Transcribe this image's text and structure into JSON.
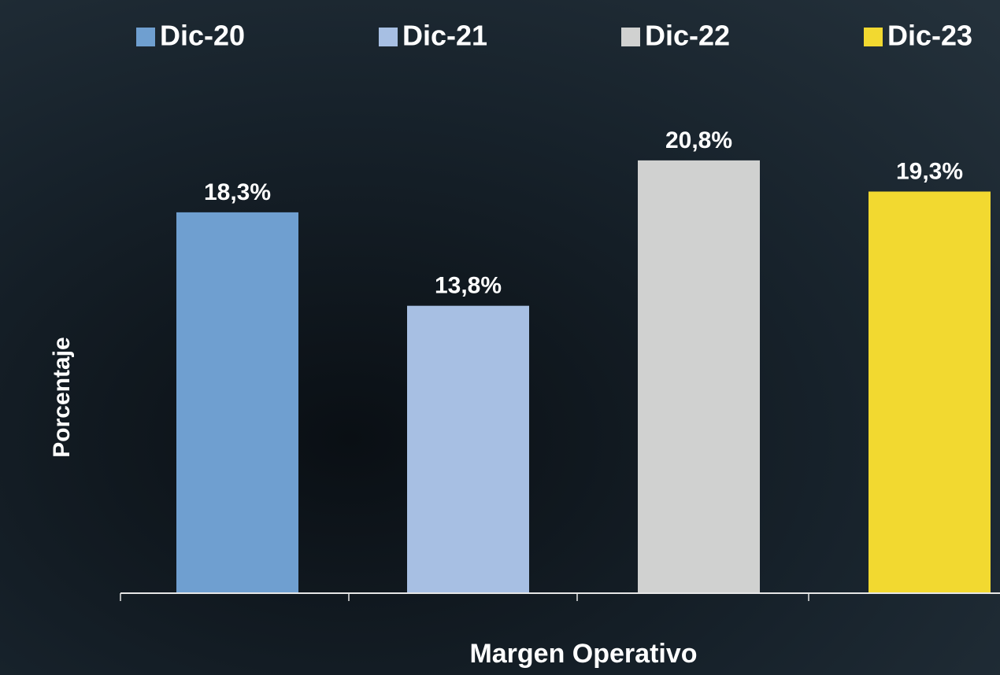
{
  "chart_data": {
    "type": "bar",
    "categories": [
      "Margen Operativo"
    ],
    "y_label": "Porcentaje",
    "series": [
      {
        "name": "Dic-20",
        "color": "#6f9fd0",
        "values": [
          18.3
        ],
        "value_labels": [
          "18,3%"
        ]
      },
      {
        "name": "Dic-21",
        "color": "#a7bfe3",
        "values": [
          13.8
        ],
        "value_labels": [
          "13,8%"
        ]
      },
      {
        "name": "Dic-22",
        "color": "#d0d1d0",
        "values": [
          20.8
        ],
        "value_labels": [
          "20,8%"
        ]
      },
      {
        "name": "Dic-23",
        "color": "#f2d930",
        "values": [
          19.3
        ],
        "value_labels": [
          "19,3%"
        ]
      }
    ],
    "ylim": [
      0,
      25
    ],
    "legend": "top"
  }
}
